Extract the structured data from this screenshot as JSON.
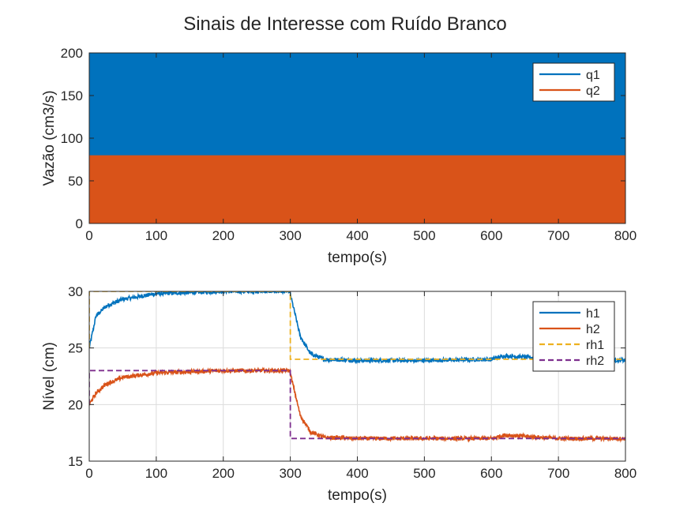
{
  "figure": {
    "title": "Sinais de Interesse com Ruído Branco"
  },
  "chart_data": [
    {
      "type": "line",
      "xlabel": "tempo(s)",
      "ylabel": "Vazão (cm3/s)",
      "xlim": [
        0,
        800
      ],
      "ylim": [
        0,
        200
      ],
      "xticks": [
        0,
        100,
        200,
        300,
        400,
        500,
        600,
        700,
        800
      ],
      "yticks": [
        0,
        50,
        100,
        150,
        200
      ],
      "grid": false,
      "legend_position": "top-right",
      "series": [
        {
          "name": "q1",
          "color": "#0072BD",
          "style": "solid",
          "signal": "switching",
          "values_range": [
            0,
            200
          ],
          "upper_level": 200,
          "lower_level": 0
        },
        {
          "name": "q2",
          "color": "#D95319",
          "style": "solid",
          "signal": "switching",
          "values_range": [
            0,
            80
          ],
          "upper_level": 80,
          "lower_level": 0
        }
      ]
    },
    {
      "type": "line",
      "xlabel": "tempo(s)",
      "ylabel": "Nível (cm)",
      "xlim": [
        0,
        800
      ],
      "ylim": [
        15,
        30
      ],
      "xticks": [
        0,
        100,
        200,
        300,
        400,
        500,
        600,
        700,
        800
      ],
      "yticks": [
        15,
        20,
        25,
        30
      ],
      "grid": true,
      "legend_position": "top-right",
      "series": [
        {
          "name": "h1",
          "color": "#0072BD",
          "style": "solid",
          "x": [
            0,
            10,
            25,
            50,
            100,
            150,
            200,
            250,
            299,
            305,
            315,
            330,
            350,
            400,
            500,
            600,
            620,
            650,
            700,
            800
          ],
          "y": [
            25,
            27.8,
            28.7,
            29.3,
            29.8,
            29.9,
            30.0,
            30.0,
            30.0,
            28.5,
            26.0,
            24.5,
            24.0,
            23.9,
            23.9,
            24.0,
            24.3,
            24.2,
            24.0,
            23.9
          ]
        },
        {
          "name": "h2",
          "color": "#D95319",
          "style": "solid",
          "x": [
            0,
            10,
            25,
            50,
            100,
            150,
            200,
            250,
            299,
            305,
            315,
            330,
            350,
            400,
            500,
            600,
            620,
            650,
            700,
            800
          ],
          "y": [
            20,
            21.0,
            21.8,
            22.4,
            22.8,
            22.9,
            23.0,
            23.0,
            23.0,
            21.5,
            19.0,
            17.6,
            17.1,
            17.0,
            17.0,
            17.0,
            17.3,
            17.2,
            17.0,
            17.0
          ]
        },
        {
          "name": "rh1",
          "color": "#EDB120",
          "style": "dashed",
          "x": [
            0,
            0,
            300,
            300,
            800
          ],
          "y": [
            25,
            30,
            30,
            24,
            24
          ]
        },
        {
          "name": "rh2",
          "color": "#7E2F8E",
          "style": "dashed",
          "x": [
            0,
            0,
            300,
            300,
            800
          ],
          "y": [
            20,
            23,
            23,
            17,
            17
          ]
        }
      ]
    }
  ]
}
